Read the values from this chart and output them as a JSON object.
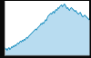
{
  "x": [
    0,
    1,
    2,
    3,
    4,
    5,
    6,
    7,
    8,
    9,
    10,
    11,
    12,
    13,
    14,
    15,
    16,
    17,
    18,
    19,
    20,
    21,
    22,
    23,
    24,
    25,
    26,
    27,
    28,
    29,
    30,
    31,
    32,
    33,
    34,
    35,
    36,
    37,
    38,
    39,
    40,
    41,
    42,
    43,
    44,
    45,
    46,
    47,
    48,
    49,
    50,
    51,
    52,
    53,
    54,
    55,
    56,
    57,
    58,
    59,
    60,
    61,
    62,
    63,
    64,
    65,
    66,
    67,
    68,
    69,
    70,
    71,
    72,
    73,
    74,
    75,
    76,
    77,
    78,
    79,
    80,
    81,
    82,
    83,
    84,
    85,
    86,
    87,
    88,
    89,
    90,
    91,
    92,
    93,
    94,
    95
  ],
  "y": [
    18,
    16,
    17,
    15,
    17,
    18,
    16,
    17,
    19,
    18,
    20,
    19,
    21,
    20,
    22,
    23,
    22,
    24,
    25,
    24,
    26,
    25,
    27,
    26,
    28,
    29,
    28,
    30,
    31,
    32,
    33,
    34,
    35,
    36,
    37,
    38,
    37,
    39,
    40,
    41,
    42,
    44,
    43,
    45,
    44,
    46,
    48,
    47,
    50,
    52,
    53,
    54,
    55,
    54,
    56,
    57,
    55,
    58,
    59,
    58,
    61,
    60,
    62,
    63,
    64,
    62,
    63,
    65,
    64,
    62,
    60,
    61,
    59,
    58,
    60,
    61,
    60,
    59,
    58,
    57,
    58,
    56,
    55,
    54,
    55,
    56,
    54,
    52,
    51,
    52,
    53,
    52,
    51,
    50,
    49,
    48
  ],
  "line_color": "#1a8fc1",
  "fill_color": "#b8dcf0",
  "bg_color": "#0a0a0a",
  "plot_bg": "#ffffff",
  "spine_color": "#999999",
  "ymax": 68,
  "ymin": 10
}
